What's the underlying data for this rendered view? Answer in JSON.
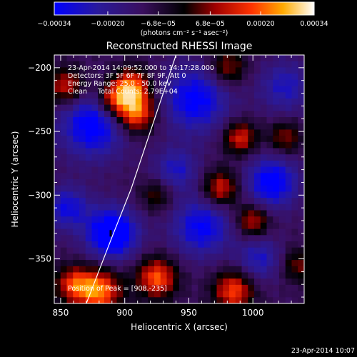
{
  "chart_data": {
    "type": "heatmap",
    "title": "Reconstructed RHESSI Image",
    "xlabel": "Heliocentric X (arcsec)",
    "ylabel": "Heliocentric Y (arcsec)",
    "xlim": [
      845,
      1040
    ],
    "ylim": [
      -385,
      -190
    ],
    "x_ticks": [
      850,
      900,
      950,
      1000
    ],
    "y_ticks": [
      -350,
      -300,
      -250,
      -200
    ],
    "colorbar": {
      "range": [
        -0.00034,
        0.00034
      ],
      "ticks": [
        "-0.00034",
        "-0.00020",
        "-6.8e-05",
        "6.8e-05",
        "0.00020",
        "0.00034"
      ],
      "ticks_values": [
        -0.00034,
        -0.0002,
        -6.8e-05,
        6.8e-05,
        0.0002,
        0.00034
      ],
      "units_label": "(photons cm⁻² s⁻¹ asec⁻²)"
    },
    "annotations": {
      "time_range": "23-Apr-2014 14:09:52.000 to 14:17:28.000",
      "detectors": "Detectors: 3F 5F 6F 7F 8F 9F, Att 0",
      "energy": "Energy Range: 25.0 - 50.0 keV",
      "method": "Clean     Total Counts: 2.79E+04",
      "peak": "Position of Peak = [908,-235]"
    },
    "peak": [
      908,
      -235
    ],
    "limb_curve": [
      [
        870,
        -385
      ],
      [
        890,
        -333
      ],
      [
        905,
        -295
      ],
      [
        920,
        -250
      ],
      [
        935,
        -205
      ],
      [
        940,
        -190
      ]
    ],
    "features": [
      {
        "x": 890,
        "y": -330,
        "amp": -1.0,
        "sigma": 14
      },
      {
        "x": 875,
        "y": -245,
        "amp": -0.8,
        "sigma": 18
      },
      {
        "x": 955,
        "y": -225,
        "amp": -0.75,
        "sigma": 18
      },
      {
        "x": 1015,
        "y": -290,
        "amp": -0.8,
        "sigma": 14
      },
      {
        "x": 960,
        "y": -325,
        "amp": -0.7,
        "sigma": 16
      },
      {
        "x": 940,
        "y": -280,
        "amp": -0.5,
        "sigma": 12
      },
      {
        "x": 1025,
        "y": -215,
        "amp": -0.5,
        "sigma": 14
      },
      {
        "x": 1005,
        "y": -350,
        "amp": -0.5,
        "sigma": 12
      },
      {
        "x": 855,
        "y": -310,
        "amp": -0.6,
        "sigma": 12
      },
      {
        "x": 908,
        "y": -235,
        "amp": 1.0,
        "sigma": 11
      },
      {
        "x": 905,
        "y": -215,
        "amp": 0.9,
        "sigma": 10
      },
      {
        "x": 890,
        "y": -225,
        "amp": 0.7,
        "sigma": 9
      },
      {
        "x": 855,
        "y": -215,
        "amp": 0.7,
        "sigma": 10
      },
      {
        "x": 880,
        "y": -375,
        "amp": 0.95,
        "sigma": 12
      },
      {
        "x": 860,
        "y": -370,
        "amp": 0.7,
        "sigma": 10
      },
      {
        "x": 925,
        "y": -365,
        "amp": 0.85,
        "sigma": 11
      },
      {
        "x": 985,
        "y": -375,
        "amp": 0.8,
        "sigma": 11
      },
      {
        "x": 975,
        "y": -295,
        "amp": 0.7,
        "sigma": 10
      },
      {
        "x": 990,
        "y": -255,
        "amp": 0.7,
        "sigma": 9
      },
      {
        "x": 1000,
        "y": -320,
        "amp": 0.65,
        "sigma": 9
      },
      {
        "x": 980,
        "y": -200,
        "amp": 0.55,
        "sigma": 10
      },
      {
        "x": 1025,
        "y": -255,
        "amp": 0.5,
        "sigma": 9
      },
      {
        "x": 1035,
        "y": -355,
        "amp": 0.45,
        "sigma": 9
      },
      {
        "x": 925,
        "y": -300,
        "amp": 0.4,
        "sigma": 9
      }
    ]
  },
  "footer": {
    "timestamp": "23-Apr-2014 10:07"
  }
}
